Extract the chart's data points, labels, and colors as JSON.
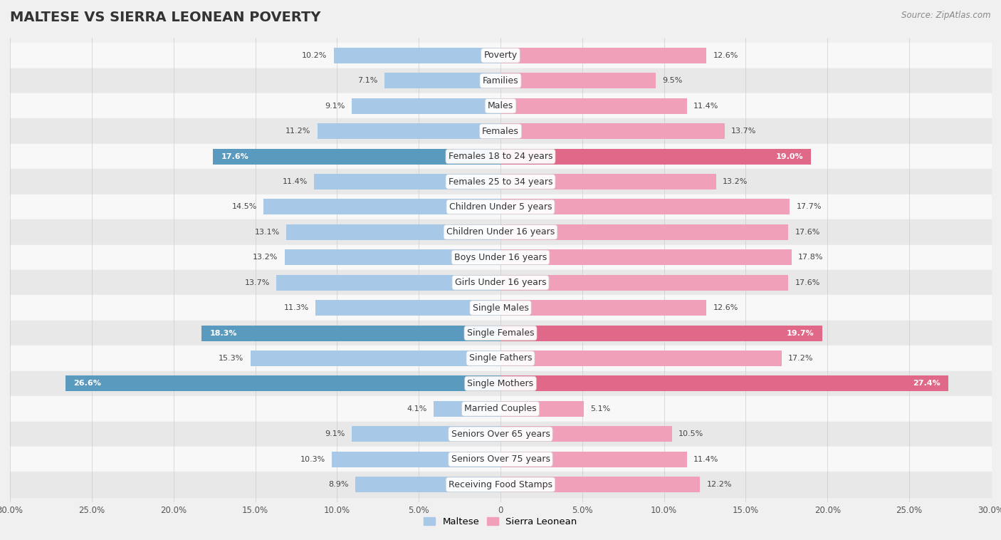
{
  "title": "MALTESE VS SIERRA LEONEAN POVERTY",
  "source": "Source: ZipAtlas.com",
  "categories": [
    "Poverty",
    "Families",
    "Males",
    "Females",
    "Females 18 to 24 years",
    "Females 25 to 34 years",
    "Children Under 5 years",
    "Children Under 16 years",
    "Boys Under 16 years",
    "Girls Under 16 years",
    "Single Males",
    "Single Females",
    "Single Fathers",
    "Single Mothers",
    "Married Couples",
    "Seniors Over 65 years",
    "Seniors Over 75 years",
    "Receiving Food Stamps"
  ],
  "maltese": [
    10.2,
    7.1,
    9.1,
    11.2,
    17.6,
    11.4,
    14.5,
    13.1,
    13.2,
    13.7,
    11.3,
    18.3,
    15.3,
    26.6,
    4.1,
    9.1,
    10.3,
    8.9
  ],
  "sierra_leonean": [
    12.6,
    9.5,
    11.4,
    13.7,
    19.0,
    13.2,
    17.7,
    17.6,
    17.8,
    17.6,
    12.6,
    19.7,
    17.2,
    27.4,
    5.1,
    10.5,
    11.4,
    12.2
  ],
  "maltese_color": "#a8c8e8",
  "sierra_leonean_color": "#f0a0b8",
  "maltese_highlight_color": "#5b9abf",
  "sierra_leonean_highlight_color": "#e06888",
  "highlight_rows": [
    4,
    11,
    13
  ],
  "axis_max": 30.0,
  "bar_height": 0.62,
  "bg_color": "#f0f0f0",
  "row_alt_color": "#e8e8e8",
  "row_base_color": "#f8f8f8",
  "title_fontsize": 14,
  "label_fontsize": 9,
  "value_fontsize": 8,
  "legend_fontsize": 9.5
}
